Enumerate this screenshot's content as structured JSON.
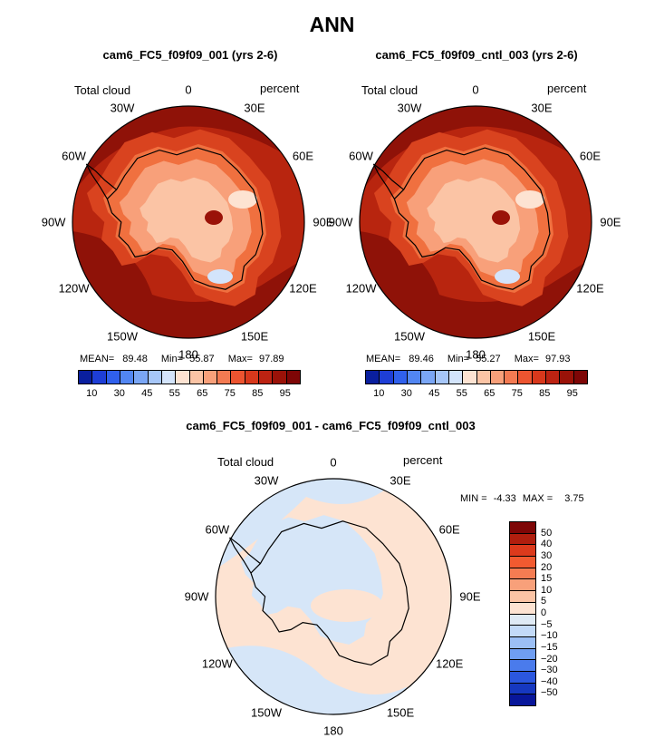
{
  "title": "ANN",
  "panels": [
    {
      "id": "test",
      "title": "cam6_FC5_f09f09_001 (yrs 2-6)",
      "var_label": "Total cloud",
      "units_label": "percent",
      "stats": {
        "mean_label": "MEAN=",
        "mean": "89.48",
        "min_label": "Min=",
        "min": "55.87",
        "max_label": "Max=",
        "max": "97.89"
      }
    },
    {
      "id": "control",
      "title": "cam6_FC5_f09f09_cntl_003 (yrs 2-6)",
      "var_label": "Total cloud",
      "units_label": "percent",
      "stats": {
        "mean_label": "MEAN=",
        "mean": "89.46",
        "min_label": "Min=",
        "min": "55.27",
        "max_label": "Max=",
        "max": "97.93"
      }
    },
    {
      "id": "diff",
      "title": "cam6_FC5_f09f09_001 - cam6_FC5_f09f09_cntl_003",
      "var_label": "Total cloud",
      "units_label": "percent",
      "stats": {
        "min_label": "MIN =",
        "min": "-4.33",
        "max_label": "MAX =",
        "max": "3.75"
      }
    }
  ],
  "lon_labels": [
    "0",
    "30E",
    "60E",
    "90E",
    "120E",
    "150E",
    "180",
    "150W",
    "120W",
    "90W",
    "60W",
    "30W"
  ],
  "colorbar_abs": {
    "ticks": [
      "10",
      "30",
      "45",
      "55",
      "65",
      "75",
      "85",
      "95"
    ],
    "colors": [
      "#0a1f9e",
      "#1e3ed6",
      "#3060ec",
      "#5286f2",
      "#7aa6f5",
      "#a6c6f8",
      "#d3e4fb",
      "#fde3d2",
      "#fbc4a5",
      "#f8a07a",
      "#f37a52",
      "#ec5430",
      "#d8381c",
      "#bc2312",
      "#9a1208",
      "#7e0606"
    ]
  },
  "colorbar_diff": {
    "ticks": [
      "50",
      "40",
      "30",
      "20",
      "15",
      "10",
      "5",
      "0",
      "−5",
      "−10",
      "−15",
      "−20",
      "−30",
      "−40",
      "−50"
    ],
    "colors": [
      "#7e0606",
      "#b01e0e",
      "#dc3a1c",
      "#f25a30",
      "#f57c52",
      "#f8a07a",
      "#fbc4a5",
      "#fde3d2",
      "#dfeaf5",
      "#c3daf8",
      "#9bbff5",
      "#6f9ef2",
      "#4a7bec",
      "#2b57df",
      "#1638c0",
      "#08169a"
    ]
  },
  "chart_data": [
    {
      "type": "heatmap",
      "projection": "south-polar-stereographic",
      "title": "cam6_FC5_f09f09_001 (yrs 2-6)",
      "variable": "Total cloud",
      "units": "percent",
      "mean": 89.48,
      "min": 55.87,
      "max": 97.89,
      "contour_levels": [
        10,
        15,
        20,
        25,
        30,
        35,
        40,
        45,
        50,
        55,
        60,
        65,
        70,
        75,
        80,
        85,
        90,
        95
      ]
    },
    {
      "type": "heatmap",
      "projection": "south-polar-stereographic",
      "title": "cam6_FC5_f09f09_cntl_003 (yrs 2-6)",
      "variable": "Total cloud",
      "units": "percent",
      "mean": 89.46,
      "min": 55.27,
      "max": 97.93,
      "contour_levels": [
        10,
        15,
        20,
        25,
        30,
        35,
        40,
        45,
        50,
        55,
        60,
        65,
        70,
        75,
        80,
        85,
        90,
        95
      ]
    },
    {
      "type": "heatmap",
      "projection": "south-polar-stereographic",
      "title": "cam6_FC5_f09f09_001 - cam6_FC5_f09f09_cntl_003",
      "variable": "Total cloud",
      "units": "percent",
      "min": -4.33,
      "max": 3.75,
      "contour_levels": [
        -50,
        -40,
        -30,
        -20,
        -15,
        -10,
        -5,
        0,
        5,
        10,
        15,
        20,
        30,
        40,
        50
      ]
    }
  ]
}
